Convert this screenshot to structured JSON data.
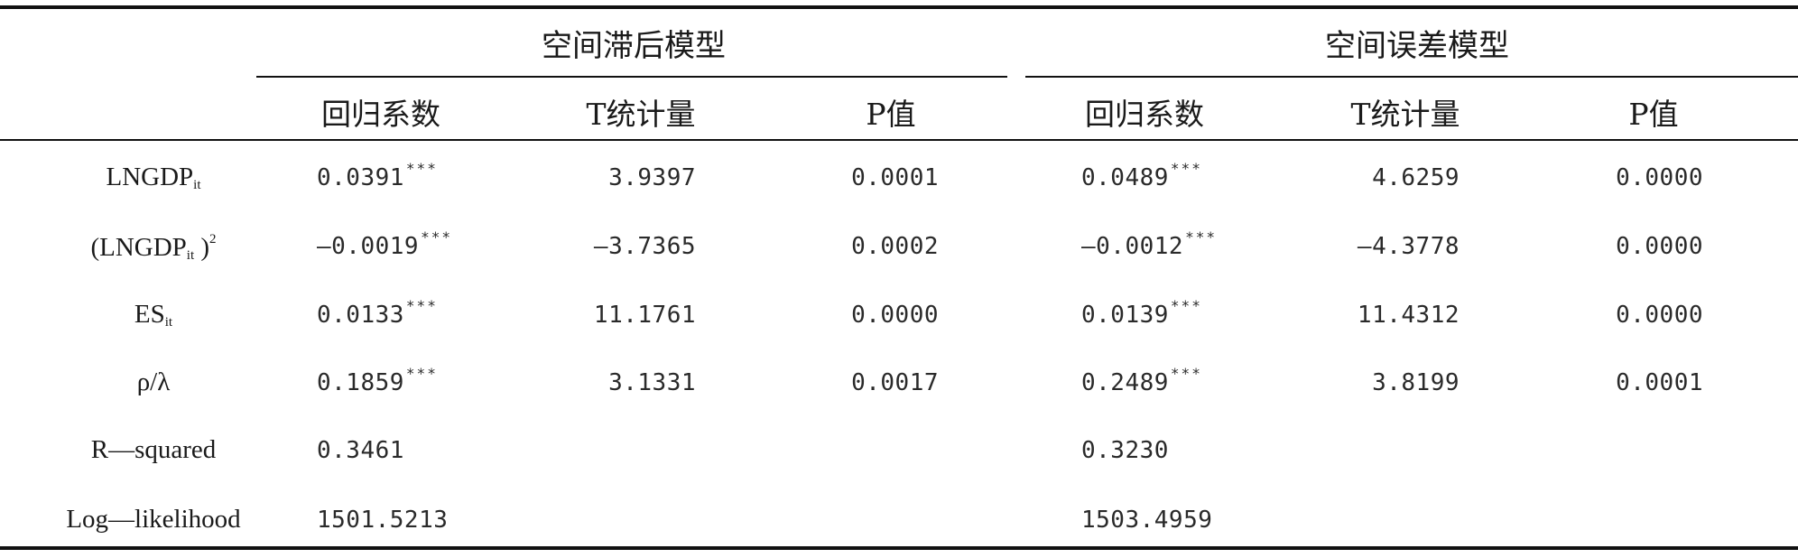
{
  "header": {
    "groups": [
      "空间滞后模型",
      "空间误差模型"
    ],
    "columns": [
      "回归系数",
      "T统计量",
      "P值",
      "回归系数",
      "T统计量",
      "P值"
    ]
  },
  "rows": [
    {
      "label": "LNGDP",
      "sub": "it",
      "sup": "",
      "prefix": "",
      "lag_coef": "0.0391",
      "lag_stars": "***",
      "lag_t": "3.9397",
      "lag_p": "0.0001",
      "err_coef": "0.0489",
      "err_stars": "***",
      "err_t": "4.6259",
      "err_p": "0.0000"
    },
    {
      "label": "LNGDP",
      "sub": "it",
      "sup": "2",
      "prefix": "(",
      "lag_coef": "—0.0019",
      "lag_stars": "***",
      "lag_t": "—3.7365",
      "lag_p": "0.0002",
      "err_coef": "—0.0012",
      "err_stars": "***",
      "err_t": "—4.3778",
      "err_p": "0.0000"
    },
    {
      "label": "ES",
      "sub": "it",
      "sup": "",
      "prefix": "",
      "lag_coef": "0.0133",
      "lag_stars": "***",
      "lag_t": "11.1761",
      "lag_p": "0.0000",
      "err_coef": "0.0139",
      "err_stars": "***",
      "err_t": "11.4312",
      "err_p": "0.0000"
    },
    {
      "label": "ρ/λ",
      "sub": "",
      "sup": "",
      "prefix": "",
      "lag_coef": "0.1859",
      "lag_stars": "***",
      "lag_t": "3.1331",
      "lag_p": "0.0017",
      "err_coef": "0.2489",
      "err_stars": "***",
      "err_t": "3.8199",
      "err_p": "0.0001"
    },
    {
      "label": "R—squared",
      "sub": "",
      "sup": "",
      "prefix": "",
      "lag_coef": "0.3461",
      "lag_stars": "",
      "lag_t": "",
      "lag_p": "",
      "err_coef": "0.3230",
      "err_stars": "",
      "err_t": "",
      "err_p": ""
    },
    {
      "label": "Log—likelihood",
      "sub": "",
      "sup": "",
      "prefix": "",
      "lag_coef": "1501.5213",
      "lag_stars": "",
      "lag_t": "",
      "lag_p": "",
      "err_coef": "1503.4959",
      "err_stars": "",
      "err_t": "",
      "err_p": ""
    }
  ]
}
